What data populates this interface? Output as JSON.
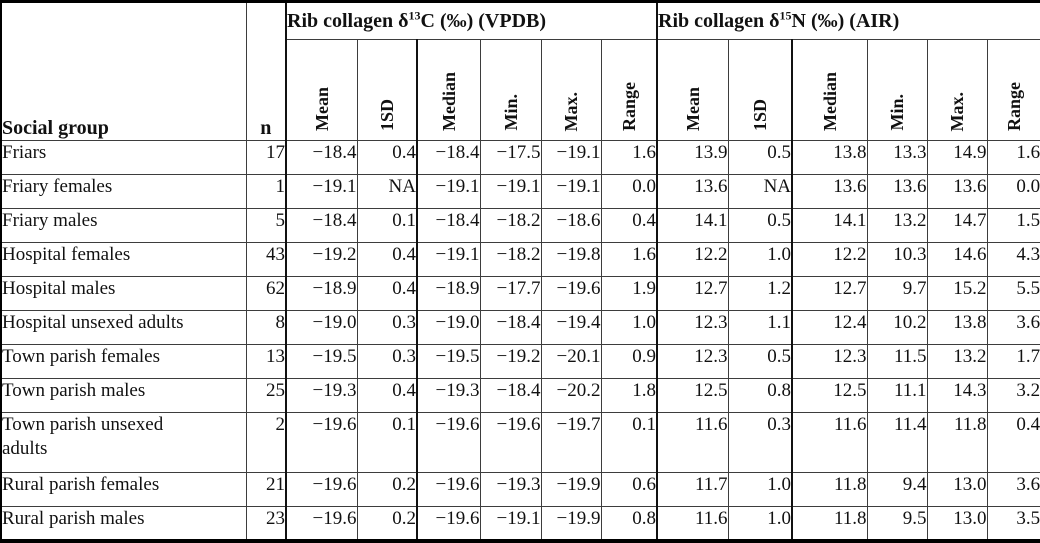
{
  "table": {
    "corner_header": "Social group",
    "n_header": "n",
    "groups": [
      {
        "prefix": "Rib collagen δ",
        "sup": "13",
        "suffix": "C (‰) (VPDB)"
      },
      {
        "prefix": "Rib collagen δ",
        "sup": "15",
        "suffix": "N (‰) (AIR)"
      }
    ],
    "stat_headers": [
      "Mean",
      "1SD",
      "Median",
      "Min.",
      "Max.",
      "Range"
    ],
    "rows": [
      {
        "tall": false,
        "cells": [
          "Friars",
          "17",
          "−18.4",
          "0.4",
          "−18.4",
          "−17.5",
          "−19.1",
          "1.6",
          "13.9",
          "0.5",
          "13.8",
          "13.3",
          "14.9",
          "1.6"
        ]
      },
      {
        "tall": false,
        "cells": [
          "Friary females",
          "1",
          "−19.1",
          "NA",
          "−19.1",
          "−19.1",
          "−19.1",
          "0.0",
          "13.6",
          "NA",
          "13.6",
          "13.6",
          "13.6",
          "0.0"
        ]
      },
      {
        "tall": false,
        "cells": [
          "Friary males",
          "5",
          "−18.4",
          "0.1",
          "−18.4",
          "−18.2",
          "−18.6",
          "0.4",
          "14.1",
          "0.5",
          "14.1",
          "13.2",
          "14.7",
          "1.5"
        ]
      },
      {
        "tall": false,
        "cells": [
          "Hospital females",
          "43",
          "−19.2",
          "0.4",
          "−19.1",
          "−18.2",
          "−19.8",
          "1.6",
          "12.2",
          "1.0",
          "12.2",
          "10.3",
          "14.6",
          "4.3"
        ]
      },
      {
        "tall": false,
        "cells": [
          "Hospital males",
          "62",
          "−18.9",
          "0.4",
          "−18.9",
          "−17.7",
          "−19.6",
          "1.9",
          "12.7",
          "1.2",
          "12.7",
          "9.7",
          "15.2",
          "5.5"
        ]
      },
      {
        "tall": false,
        "cells": [
          "Hospital unsexed adults",
          "8",
          "−19.0",
          "0.3",
          "−19.0",
          "−18.4",
          "−19.4",
          "1.0",
          "12.3",
          "1.1",
          "12.4",
          "10.2",
          "13.8",
          "3.6"
        ]
      },
      {
        "tall": false,
        "cells": [
          "Town parish females",
          "13",
          "−19.5",
          "0.3",
          "−19.5",
          "−19.2",
          "−20.1",
          "0.9",
          "12.3",
          "0.5",
          "12.3",
          "11.5",
          "13.2",
          "1.7"
        ]
      },
      {
        "tall": false,
        "cells": [
          "Town parish males",
          "25",
          "−19.3",
          "0.4",
          "−19.3",
          "−18.4",
          "−20.2",
          "1.8",
          "12.5",
          "0.8",
          "12.5",
          "11.1",
          "14.3",
          "3.2"
        ]
      },
      {
        "tall": true,
        "cells": [
          "Town parish unsexed\nadults",
          "2",
          "−19.6",
          "0.1",
          "−19.6",
          "−19.6",
          "−19.7",
          "0.1",
          "11.6",
          "0.3",
          "11.6",
          "11.4",
          "11.8",
          "0.4"
        ]
      },
      {
        "tall": false,
        "cells": [
          "Rural parish females",
          "21",
          "−19.6",
          "0.2",
          "−19.6",
          "−19.3",
          "−19.9",
          "0.6",
          "11.7",
          "1.0",
          "11.8",
          "9.4",
          "13.0",
          "3.6"
        ]
      },
      {
        "tall": false,
        "cells": [
          "Rural parish males",
          "23",
          "−19.6",
          "0.2",
          "−19.6",
          "−19.1",
          "−19.9",
          "0.8",
          "11.6",
          "1.0",
          "11.8",
          "9.5",
          "13.0",
          "3.5"
        ]
      }
    ]
  }
}
